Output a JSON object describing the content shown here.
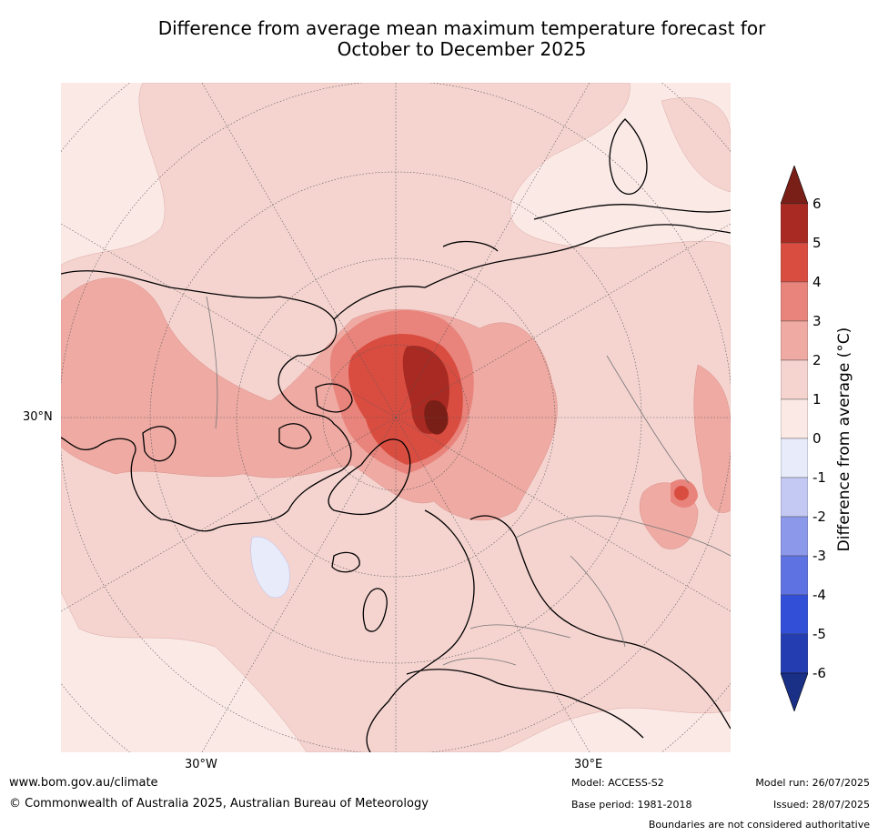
{
  "title": {
    "line1": "Difference from average mean maximum temperature forecast for",
    "line2": "October to December 2025"
  },
  "map": {
    "lat_labels": [
      "30°N"
    ],
    "lon_labels": [
      "30°W",
      "30°E"
    ]
  },
  "colorbar": {
    "label": "Difference from average (°C)",
    "ticks": [
      "6",
      "5",
      "4",
      "3",
      "2",
      "1",
      "0",
      "-1",
      "-2",
      "-3",
      "-4",
      "-5",
      "-6"
    ],
    "colors": [
      "#7a1f17",
      "#a82a22",
      "#d94d41",
      "#e8847b",
      "#eeaaa3",
      "#f5d4d0",
      "#fbe9e6",
      "#e8ebfa",
      "#c3c9f2",
      "#8c98ea",
      "#5f72e2",
      "#324fd8",
      "#243eb2",
      "#1a2f86"
    ]
  },
  "footer": {
    "url": "www.bom.gov.au/climate",
    "copyright": "© Commonwealth of Australia 2025, Australian Bureau of Meteorology",
    "model": "Model: ACCESS-S2",
    "base_period": "Base period: 1981-2018",
    "model_run": "Model run: 26/07/2025",
    "issued": "Issued: 28/07/2025",
    "disclaimer": "Boundaries are not considered authoritative"
  }
}
